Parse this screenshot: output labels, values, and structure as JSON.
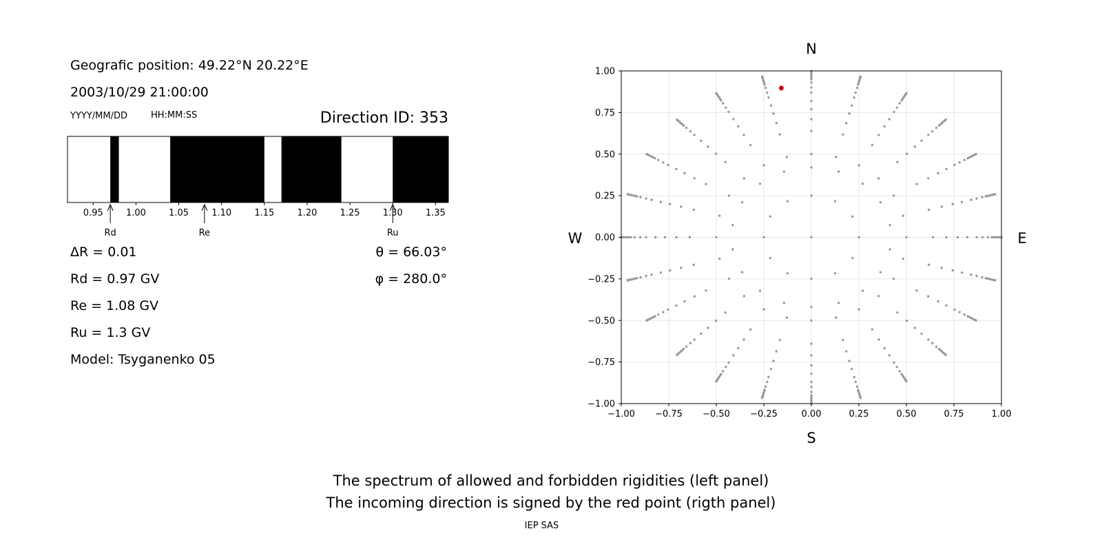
{
  "info": {
    "position": "Geografic position: 49.22°N 20.22°E",
    "datetime": "2003/10/29 21:00:00",
    "date_format": "YYYY/MM/DD",
    "time_format": "HH:MM:SS",
    "direction_id": "Direction ID: 353",
    "delta_r": "ΔR = 0.01",
    "rd": "Rd = 0.97 GV",
    "re": "Re = 1.08 GV",
    "ru": "Ru = 1.3 GV",
    "model": "Model: Tsyganenko 05",
    "theta": "θ = 66.03°",
    "phi": "φ = 280.0°"
  },
  "caption": {
    "line1": "The spectrum of allowed and forbidden rigidities (left panel)",
    "line2": "The incoming direction is signed by the red point (rigth panel)",
    "credit": "IEP SAS"
  },
  "chart_data": [
    {
      "type": "bar",
      "subtype": "rigidity-spectrum",
      "xlim": [
        0.92,
        1.365
      ],
      "xticks": [
        0.95,
        1.0,
        1.05,
        1.1,
        1.15,
        1.2,
        1.25,
        1.3,
        1.35
      ],
      "xtick_labels": [
        "0.95",
        "1.00",
        "1.05",
        "1.10",
        "1.15",
        "1.20",
        "1.25",
        "1.30",
        "1.35"
      ],
      "forbidden_intervals": [
        [
          0.97,
          0.98
        ],
        [
          1.04,
          1.15
        ],
        [
          1.17,
          1.24
        ],
        [
          1.3,
          1.365
        ]
      ],
      "allowed_color": "#ffffff",
      "forbidden_color": "#000000",
      "markers": [
        {
          "label": "Rd",
          "value": 0.97
        },
        {
          "label": "Re",
          "value": 1.08
        },
        {
          "label": "Ru",
          "value": 1.3
        }
      ]
    },
    {
      "type": "scatter",
      "subtype": "sky-map",
      "xlim": [
        -1.0,
        1.0
      ],
      "ylim": [
        -1.0,
        1.0
      ],
      "xticks": [
        "−1.00",
        "−0.75",
        "−0.50",
        "−0.25",
        "0.00",
        "0.25",
        "0.50",
        "0.75",
        "1.00"
      ],
      "yticks": [
        "1.00",
        "0.75",
        "0.50",
        "0.25",
        "0.00",
        "−0.25",
        "−0.50",
        "−0.75",
        "−1.00"
      ],
      "grid": true,
      "directions": {
        "top": "N",
        "bottom": "S",
        "left": "W",
        "right": "E"
      },
      "grid_points": {
        "rings": [
          0.0,
          0.25,
          0.42,
          0.5,
          0.64,
          0.71,
          0.77,
          0.82,
          0.87,
          0.9,
          0.93,
          0.95,
          0.96,
          0.97,
          0.98,
          0.99,
          0.995,
          1.0
        ],
        "azimuth_step_deg": [
          0,
          30,
          20,
          15,
          15,
          15,
          15,
          15,
          15,
          15,
          15,
          15,
          15,
          15,
          15,
          15,
          15,
          15
        ],
        "azimuth_offset_deg": [
          0,
          0,
          10,
          0,
          0,
          0,
          0,
          0,
          0,
          0,
          0,
          0,
          0,
          0,
          0,
          0,
          0,
          0
        ],
        "color": "#999999"
      },
      "highlight_point": {
        "x": -0.158,
        "y": 0.897,
        "color": "#e00000"
      }
    }
  ]
}
